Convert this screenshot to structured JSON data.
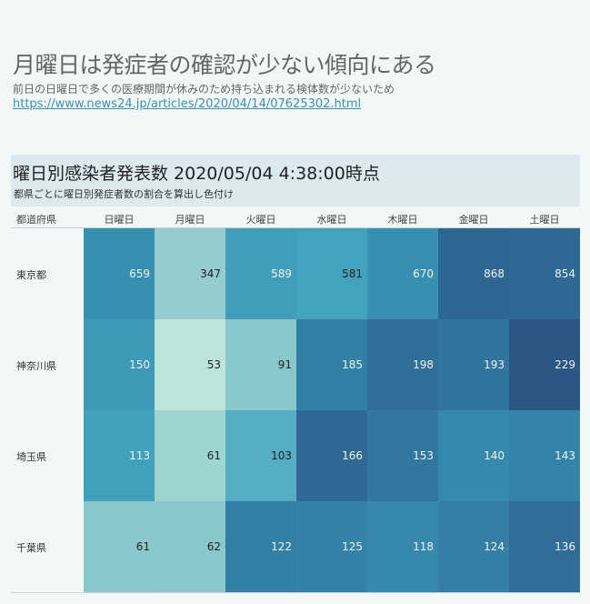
{
  "header": {
    "title": "月曜日は発症者の確認が少ない傾向にある",
    "subtitle": "前日の日曜日で多くの医療期間が休みのため持ち込まれる検体数が少ないため",
    "link": "https://www.news24.jp/articles/2020/04/14/07625302.html"
  },
  "panel": {
    "title": "曜日別感染者発表数  2020/05/04 4:38:00時点",
    "subtitle": "都県ごとに曜日別発症者数の割合を算出し色付け"
  },
  "table": {
    "row_header": "都道府県",
    "columns": [
      "日曜日",
      "月曜日",
      "火曜日",
      "水曜日",
      "木曜日",
      "金曜日",
      "土曜日"
    ],
    "rows": [
      {
        "label": "東京都",
        "values": [
          "659",
          "347",
          "589",
          "581",
          "670",
          "868",
          "854"
        ],
        "colors": [
          "#3890b0",
          "#94cccf",
          "#419eb9",
          "#44a3bc",
          "#388fb0",
          "#2e6692",
          "#2f6993"
        ],
        "text_colors": [
          "#f2f2f2",
          "#222",
          "#f2f2f2",
          "#222",
          "#f2f2f2",
          "#f2f2f2",
          "#f2f2f2"
        ]
      },
      {
        "label": "神奈川県",
        "values": [
          "150",
          "53",
          "91",
          "185",
          "198",
          "193",
          "229"
        ],
        "colors": [
          "#3d9ab7",
          "#bde4da",
          "#8ac7cd",
          "#3180a5",
          "#2f6f98",
          "#30759d",
          "#2b5883"
        ],
        "text_colors": [
          "#f2f2f2",
          "#222",
          "#222",
          "#f2f2f2",
          "#f2f2f2",
          "#f2f2f2",
          "#f2f2f2"
        ]
      },
      {
        "label": "埼玉県",
        "values": [
          "113",
          "61",
          "103",
          "166",
          "153",
          "140",
          "143"
        ],
        "colors": [
          "#41a0bb",
          "#9ed5d1",
          "#54adc2",
          "#306a94",
          "#3177a0",
          "#3589ac",
          "#3484a9"
        ],
        "text_colors": [
          "#f2f2f2",
          "#222",
          "#222",
          "#f2f2f2",
          "#f2f2f2",
          "#f2f2f2",
          "#f2f2f2"
        ]
      },
      {
        "label": "千葉県",
        "values": [
          "61",
          "62",
          "122",
          "125",
          "118",
          "124",
          "136"
        ],
        "colors": [
          "#8bc8cd",
          "#8ac7cd",
          "#3280a4",
          "#3383a8",
          "#3689ad",
          "#347fa3",
          "#306e98"
        ],
        "text_colors": [
          "#222",
          "#222",
          "#f2f2f2",
          "#f2f2f2",
          "#f2f2f2",
          "#f2f2f2",
          "#f2f2f2"
        ]
      }
    ]
  },
  "chart_data": {
    "type": "heatmap",
    "title": "曜日別感染者発表数  2020/05/04 4:38:00時点",
    "subtitle": "都県ごとに曜日別発症者数の割合を算出し色付け",
    "xlabel": "",
    "ylabel": "都道府県",
    "x": [
      "日曜日",
      "月曜日",
      "火曜日",
      "水曜日",
      "木曜日",
      "金曜日",
      "土曜日"
    ],
    "y": [
      "東京都",
      "神奈川県",
      "埼玉県",
      "千葉県"
    ],
    "values": [
      [
        659,
        347,
        589,
        581,
        670,
        868,
        854
      ],
      [
        150,
        53,
        91,
        185,
        198,
        193,
        229
      ],
      [
        113,
        61,
        103,
        166,
        153,
        140,
        143
      ],
      [
        61,
        62,
        122,
        125,
        118,
        124,
        136
      ]
    ],
    "color_scale": "per-row proportion, light teal (low) to dark blue (high)"
  }
}
